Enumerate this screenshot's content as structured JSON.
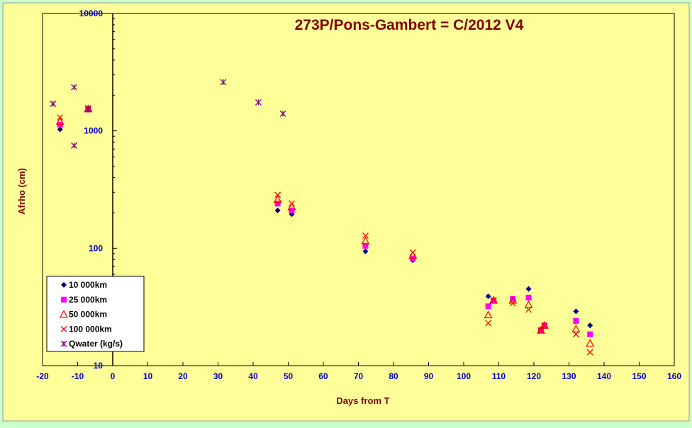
{
  "chart_data": {
    "type": "scatter",
    "title": "273P/Pons-Gambert = C/2012 V4",
    "xlabel": "Days from T",
    "ylabel": "Afrho (cm)",
    "x_ticks": [
      "-20",
      "-10",
      "0",
      "10",
      "20",
      "30",
      "40",
      "50",
      "60",
      "70",
      "80",
      "90",
      "100",
      "110",
      "120",
      "130",
      "140",
      "150",
      "160"
    ],
    "y_ticks": [
      "10",
      "100",
      "1000",
      "10000"
    ],
    "xlim": [
      -20,
      160
    ],
    "ylim": [
      10,
      10000
    ],
    "y_scale": "log",
    "legend_position": "bottom-left",
    "grid": false,
    "series": [
      {
        "name": "10 000km",
        "marker": "diamond",
        "color": "#000080",
        "points": [
          [
            -15,
            1030
          ],
          [
            47,
            210
          ],
          [
            51,
            195
          ],
          [
            72,
            94
          ],
          [
            85.5,
            79
          ],
          [
            107,
            39
          ],
          [
            108.5,
            36
          ],
          [
            114,
            37
          ],
          [
            118.5,
            45
          ],
          [
            122,
            20
          ],
          [
            123,
            22
          ],
          [
            132,
            29
          ],
          [
            136,
            22
          ]
        ]
      },
      {
        "name": "25 000km",
        "marker": "square",
        "color": "#ff00ff",
        "points": [
          [
            -15,
            1130
          ],
          [
            -7,
            1520
          ],
          [
            47,
            240
          ],
          [
            51,
            210
          ],
          [
            72,
            105
          ],
          [
            85.5,
            82
          ],
          [
            107,
            32
          ],
          [
            108.5,
            36
          ],
          [
            114,
            37
          ],
          [
            118.5,
            38
          ],
          [
            122,
            20
          ],
          [
            123,
            22
          ],
          [
            132,
            24
          ],
          [
            136,
            18.5
          ]
        ]
      },
      {
        "name": "50 000km",
        "marker": "triangle",
        "color": "#ff0000",
        "points": [
          [
            -15,
            1200
          ],
          [
            -7,
            1540
          ],
          [
            47,
            260
          ],
          [
            51,
            225
          ],
          [
            72,
            115
          ],
          [
            85.5,
            87
          ],
          [
            107,
            27
          ],
          [
            108.5,
            36
          ],
          [
            114,
            36
          ],
          [
            118.5,
            33
          ],
          [
            122,
            20
          ],
          [
            123,
            22
          ],
          [
            132,
            20.5
          ],
          [
            136,
            15.5
          ]
        ]
      },
      {
        "name": "100 000km",
        "marker": "x",
        "color": "#ff0000",
        "points": [
          [
            -15,
            1300
          ],
          [
            -7,
            1560
          ],
          [
            47,
            285
          ],
          [
            51,
            240
          ],
          [
            72,
            128
          ],
          [
            85.5,
            92
          ],
          [
            107,
            23
          ],
          [
            108.5,
            36
          ],
          [
            114,
            34
          ],
          [
            118.5,
            30
          ],
          [
            122,
            20
          ],
          [
            123,
            22
          ],
          [
            132,
            18.5
          ],
          [
            136,
            13
          ]
        ]
      },
      {
        "name": "Qwater (kg/s)",
        "marker": "star",
        "color": "#800080",
        "points": [
          [
            -17,
            1700
          ],
          [
            -11,
            2350
          ],
          [
            -11,
            750
          ],
          [
            -7,
            1530
          ],
          [
            31.5,
            2600
          ],
          [
            41.5,
            1750
          ],
          [
            48.5,
            1400
          ]
        ]
      }
    ]
  },
  "colors": {
    "page_background": "#ccffcc",
    "plot_background": "#ffff99",
    "tick_text": "#0000cc",
    "label_text": "#800000"
  }
}
